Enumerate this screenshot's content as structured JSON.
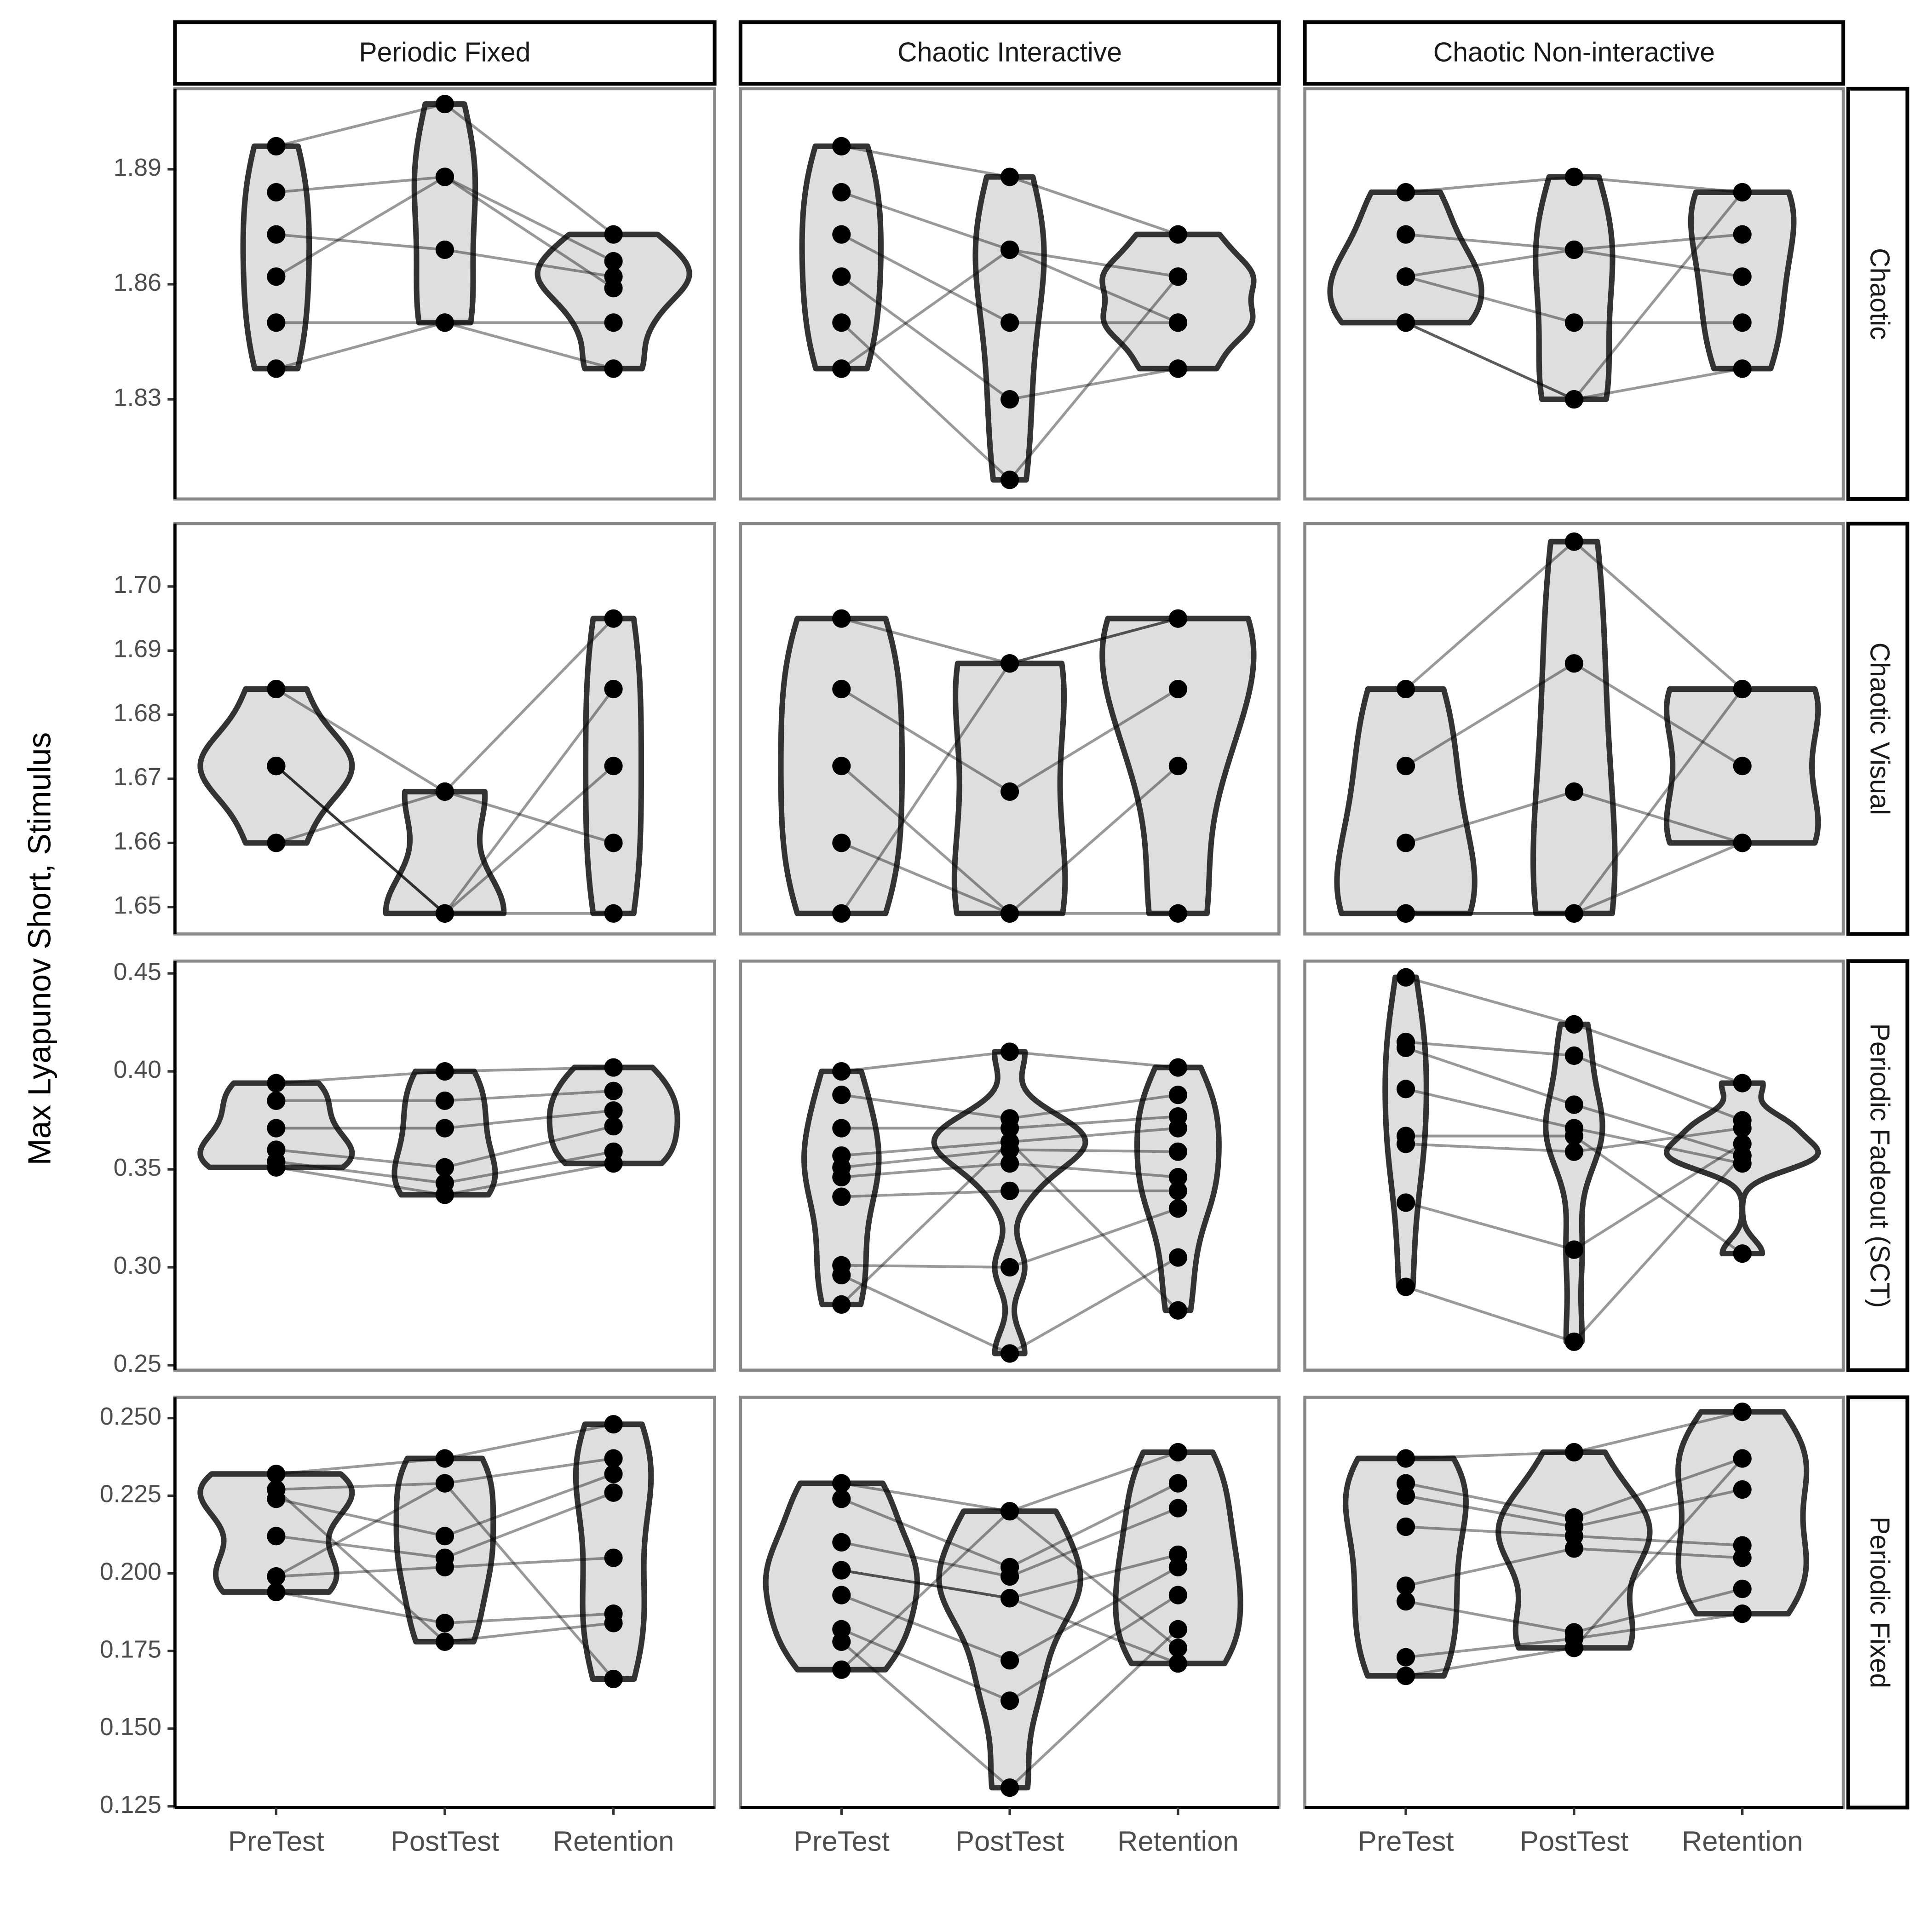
{
  "chart_data": {
    "type": "violin",
    "ylabel": "Max Lyapunov Short, Stimulus",
    "categories": [
      "PreTest",
      "PostTest",
      "Retention"
    ],
    "columns": [
      "Periodic Fixed",
      "Chaotic Interactive",
      "Chaotic Non-interactive"
    ],
    "fill": "#dedede",
    "outline": "#333333",
    "point_color": "#000000",
    "line_color": "#000000",
    "rows": [
      {
        "label": "Chaotic",
        "ylim": [
          1.804,
          1.911
        ],
        "yticks": [
          1.83,
          1.86,
          1.89
        ],
        "panels": [
          {
            "values": [
              [
                1.896,
                1.884,
                1.873,
                1.862,
                1.85,
                1.838
              ],
              [
                1.907,
                1.888,
                1.869,
                1.888,
                1.85,
                1.85
              ],
              [
                1.873,
                1.866,
                1.862,
                1.859,
                1.85,
                1.838
              ]
            ]
          },
          {
            "values": [
              [
                1.896,
                1.884,
                1.873,
                1.862,
                1.85,
                1.838
              ],
              [
                1.888,
                1.869,
                1.85,
                1.83,
                1.809,
                1.869
              ],
              [
                1.873,
                1.862,
                1.85,
                1.838,
                1.862,
                1.85
              ]
            ]
          },
          {
            "values": [
              [
                1.884,
                1.873,
                1.862,
                1.862,
                1.85,
                1.85
              ],
              [
                1.888,
                1.869,
                1.869,
                1.85,
                1.83,
                1.83
              ],
              [
                1.884,
                1.873,
                1.862,
                1.85,
                1.838,
                1.884
              ]
            ]
          }
        ]
      },
      {
        "label": "Chaotic Visual",
        "ylim": [
          1.6458,
          1.7098
        ],
        "yticks": [
          1.65,
          1.66,
          1.67,
          1.68,
          1.69,
          {
            "value": 1.7,
            "label": "1.70"
          }
        ],
        "panels": [
          {
            "values": [
              [
                1.684,
                1.672,
                1.672,
                1.66,
                1.672
              ],
              [
                1.668,
                1.649,
                1.649,
                1.668,
                1.649
              ],
              [
                1.695,
                1.684,
                1.672,
                1.66,
                1.649
              ]
            ]
          },
          {
            "values": [
              [
                1.695,
                1.684,
                1.672,
                1.66,
                1.649
              ],
              [
                1.688,
                1.668,
                1.649,
                1.649,
                1.688
              ],
              [
                1.695,
                1.684,
                1.672,
                1.649,
                1.695
              ]
            ]
          },
          {
            "values": [
              [
                1.684,
                1.672,
                1.66,
                1.649,
                1.649
              ],
              [
                1.707,
                1.688,
                1.668,
                1.649,
                1.649
              ],
              [
                1.684,
                1.672,
                1.66,
                1.684,
                1.66
              ]
            ]
          }
        ]
      },
      {
        "label": "Periodic Fadeout (SCT)",
        "ylim": [
          0.2475,
          0.4563
        ],
        "yticks": [
          0.25,
          {
            "value": 0.3,
            "label": "0.30"
          },
          0.35,
          {
            "value": 0.4,
            "label": "0.40"
          },
          0.45
        ],
        "panels": [
          {
            "values": [
              [
                0.394,
                0.385,
                0.371,
                0.36,
                0.354,
                0.351
              ],
              [
                0.4,
                0.385,
                0.371,
                0.351,
                0.343,
                0.337
              ],
              [
                0.402,
                0.39,
                0.38,
                0.372,
                0.359,
                0.353
              ]
            ]
          },
          {
            "values": [
              [
                0.4,
                0.388,
                0.371,
                0.357,
                0.351,
                0.346,
                0.336,
                0.301,
                0.296,
                0.281
              ],
              [
                0.41,
                0.376,
                0.371,
                0.364,
                0.36,
                0.353,
                0.339,
                0.3,
                0.256,
                0.364
              ],
              [
                0.402,
                0.388,
                0.377,
                0.371,
                0.359,
                0.346,
                0.339,
                0.33,
                0.305,
                0.278
              ]
            ]
          },
          {
            "values": [
              [
                0.448,
                0.415,
                0.412,
                0.391,
                0.367,
                0.363,
                0.333,
                0.29
              ],
              [
                0.424,
                0.408,
                0.383,
                0.371,
                0.367,
                0.359,
                0.309,
                0.262
              ],
              [
                0.394,
                0.375,
                0.357,
                0.353,
                0.307,
                0.371,
                0.363,
                0.357
              ]
            ]
          }
        ]
      },
      {
        "label": "Periodic Fixed",
        "ylim": [
          0.1246,
          0.2567
        ],
        "yticks": [
          0.125,
          {
            "value": 0.15,
            "label": "0.150"
          },
          0.175,
          {
            "value": 0.2,
            "label": "0.200"
          },
          0.225,
          {
            "value": 0.25,
            "label": "0.250"
          }
        ],
        "panels": [
          {
            "values": [
              [
                0.232,
                0.227,
                0.224,
                0.212,
                0.199,
                0.194,
                0.227,
                0.199
              ],
              [
                0.237,
                0.229,
                0.212,
                0.205,
                0.202,
                0.184,
                0.178,
                0.229
              ],
              [
                0.248,
                0.237,
                0.232,
                0.226,
                0.205,
                0.187,
                0.184,
                0.166
              ]
            ]
          },
          {
            "values": [
              [
                0.229,
                0.224,
                0.21,
                0.201,
                0.193,
                0.182,
                0.178,
                0.169,
                0.201
              ],
              [
                0.22,
                0.202,
                0.199,
                0.192,
                0.172,
                0.159,
                0.131,
                0.22,
                0.192
              ],
              [
                0.239,
                0.229,
                0.221,
                0.206,
                0.202,
                0.193,
                0.182,
                0.176,
                0.171
              ]
            ]
          },
          {
            "values": [
              [
                0.237,
                0.229,
                0.225,
                0.215,
                0.196,
                0.191,
                0.173,
                0.167
              ],
              [
                0.239,
                0.218,
                0.215,
                0.212,
                0.208,
                0.181,
                0.179,
                0.176
              ],
              [
                0.252,
                0.237,
                0.227,
                0.209,
                0.205,
                0.195,
                0.187,
                0.237
              ]
            ]
          }
        ]
      }
    ]
  }
}
